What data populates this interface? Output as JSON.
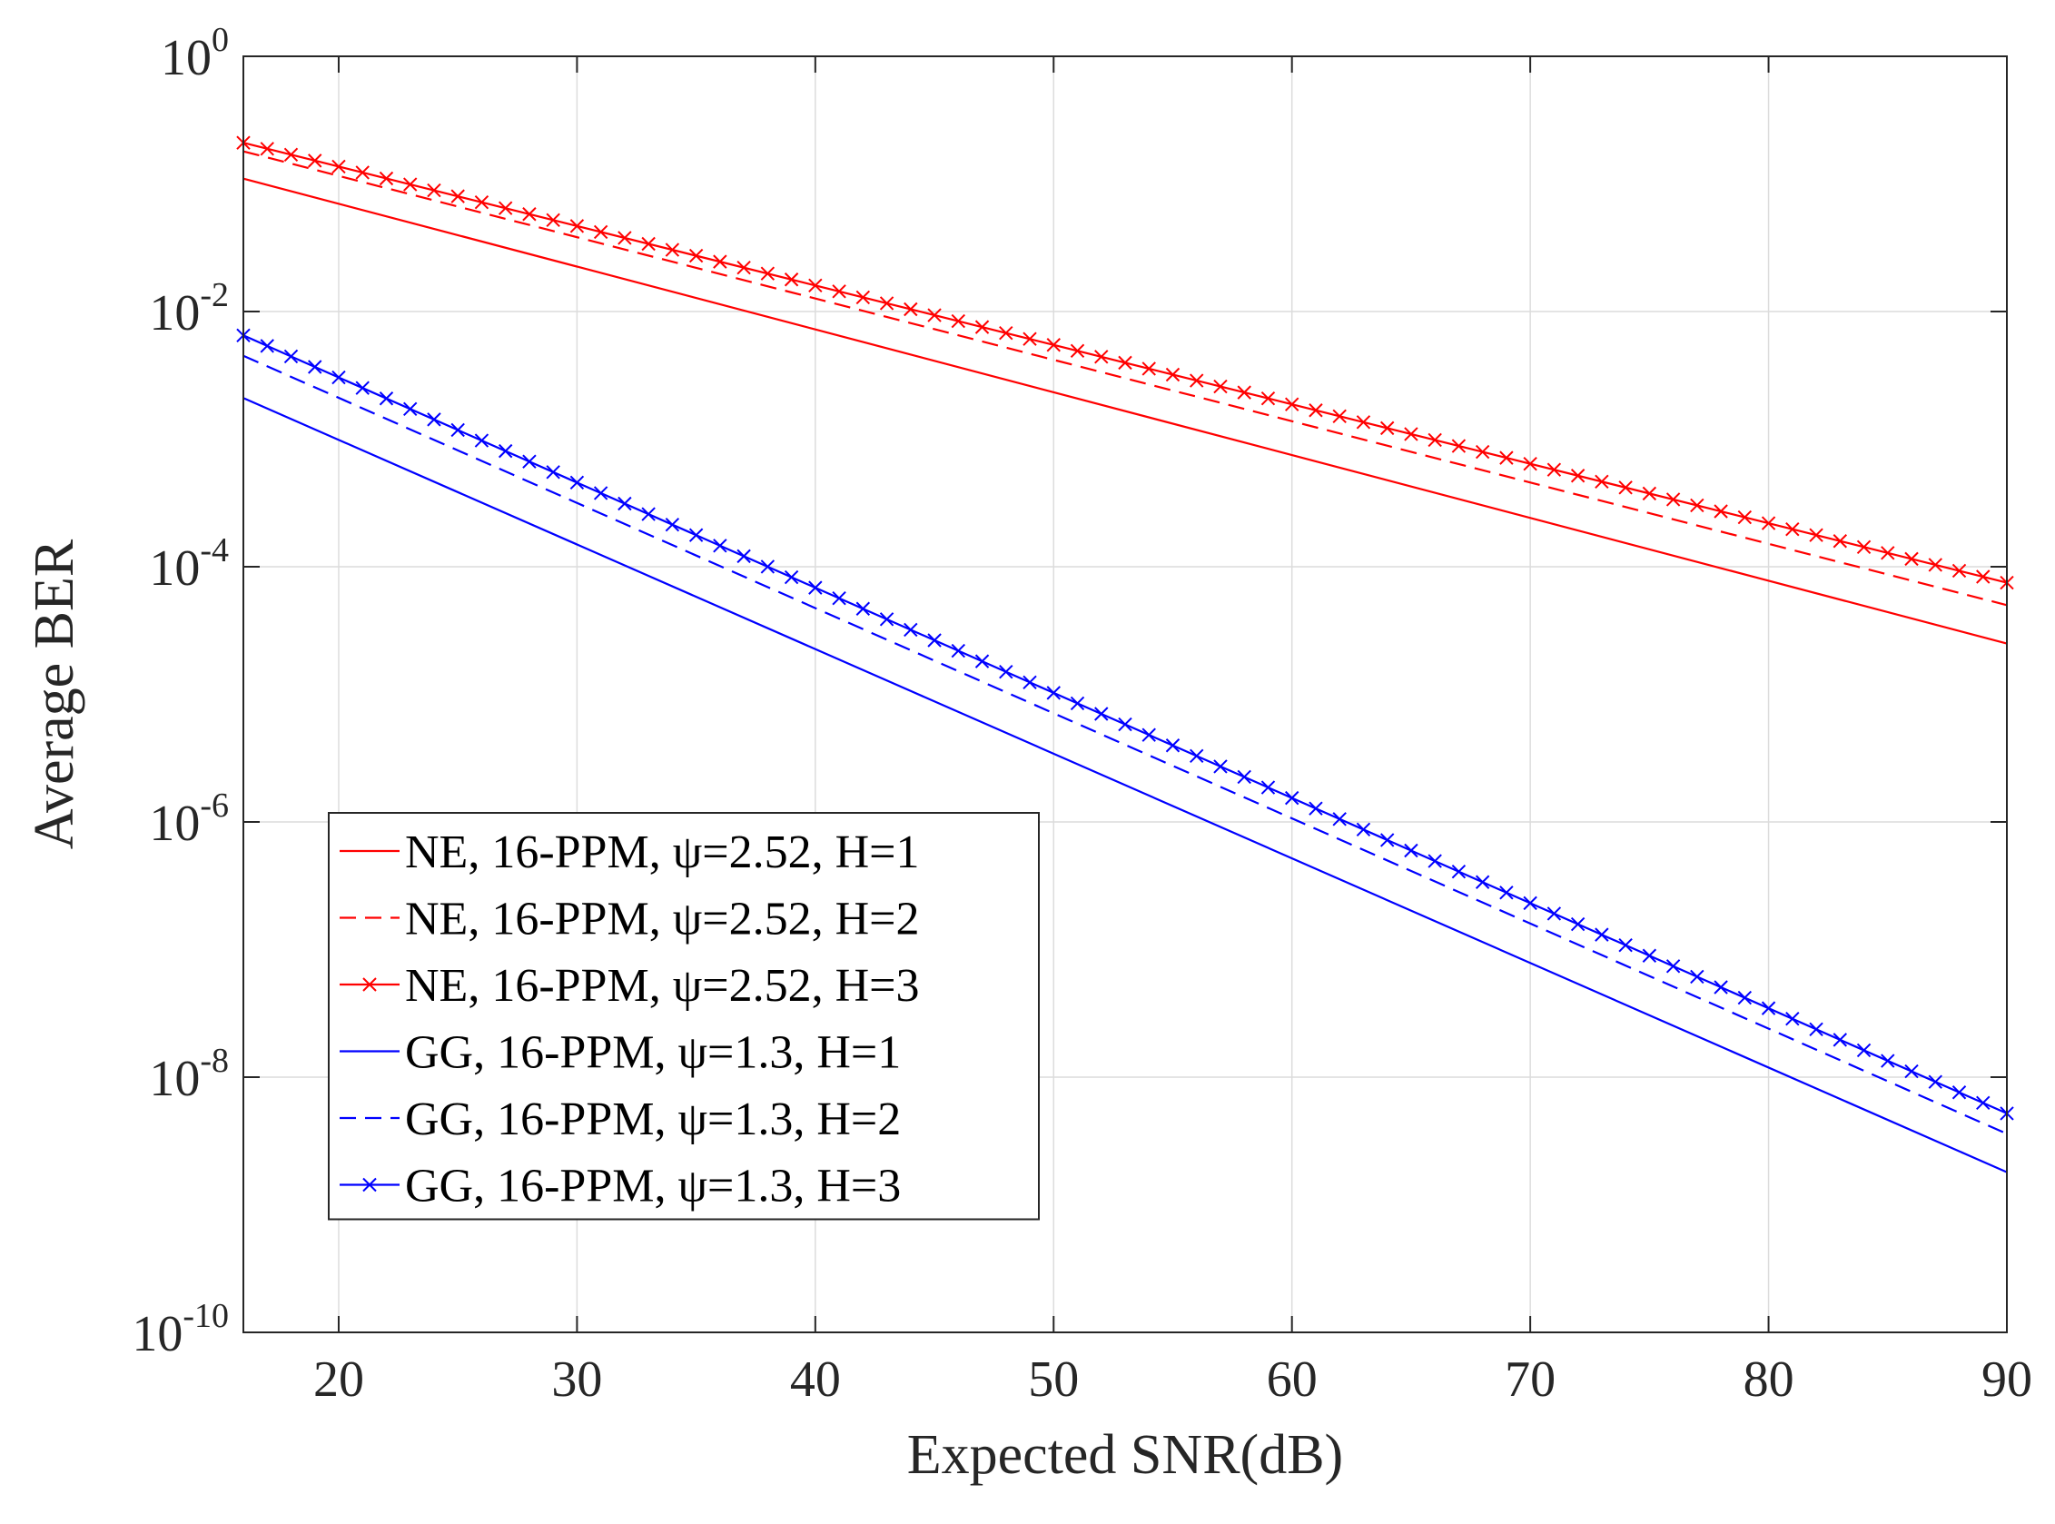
{
  "chart_data": {
    "type": "line",
    "title": "",
    "xlabel": "Expected SNR(dB)",
    "ylabel": "Average BER",
    "xlim": [
      16,
      90
    ],
    "ylim": [
      1e-10,
      1
    ],
    "yscale": "log",
    "grid": true,
    "legend_position": "lower-left",
    "x_ticks": [
      20,
      30,
      40,
      50,
      60,
      70,
      80,
      90
    ],
    "y_ticks": [
      {
        "exp": 0,
        "base": "10",
        "sup": "0"
      },
      {
        "exp": -2,
        "base": "10",
        "sup": "-2"
      },
      {
        "exp": -4,
        "base": "10",
        "sup": "-4"
      },
      {
        "exp": -6,
        "base": "10",
        "sup": "-6"
      },
      {
        "exp": -8,
        "base": "10",
        "sup": "-8"
      },
      {
        "exp": -10,
        "base": "10",
        "sup": "-10"
      }
    ],
    "series": [
      {
        "name": "NE, 16-PPM, ψ=2.52, H=1",
        "color": "#ff0000",
        "style": "solid",
        "marker": "none",
        "x": [
          16,
          90
        ],
        "y": [
          0.11,
          2.5e-05
        ]
      },
      {
        "name": "NE, 16-PPM, ψ=2.52, H=2",
        "color": "#ff0000",
        "style": "dashed",
        "marker": "none",
        "x": [
          16,
          90
        ],
        "y": [
          0.18,
          5e-05
        ]
      },
      {
        "name": "NE, 16-PPM, ψ=2.52, H=3",
        "color": "#ff0000",
        "style": "solid",
        "marker": "x",
        "x": [
          16,
          90
        ],
        "y": [
          0.21,
          7.5e-05
        ]
      },
      {
        "name": "GG, 16-PPM, ψ=1.3, H=1",
        "color": "#0000ff",
        "style": "solid",
        "marker": "none",
        "x": [
          16,
          90
        ],
        "y": [
          0.0021,
          1.8e-09
        ]
      },
      {
        "name": "GG, 16-PPM, ψ=1.3, H=2",
        "color": "#0000ff",
        "style": "dashed",
        "marker": "none",
        "x": [
          16,
          90
        ],
        "y": [
          0.0045,
          3.6e-09
        ]
      },
      {
        "name": "GG, 16-PPM, ψ=1.3, H=3",
        "color": "#0000ff",
        "style": "solid",
        "marker": "x",
        "x": [
          16,
          90
        ],
        "y": [
          0.0065,
          5.2e-09
        ]
      }
    ]
  }
}
